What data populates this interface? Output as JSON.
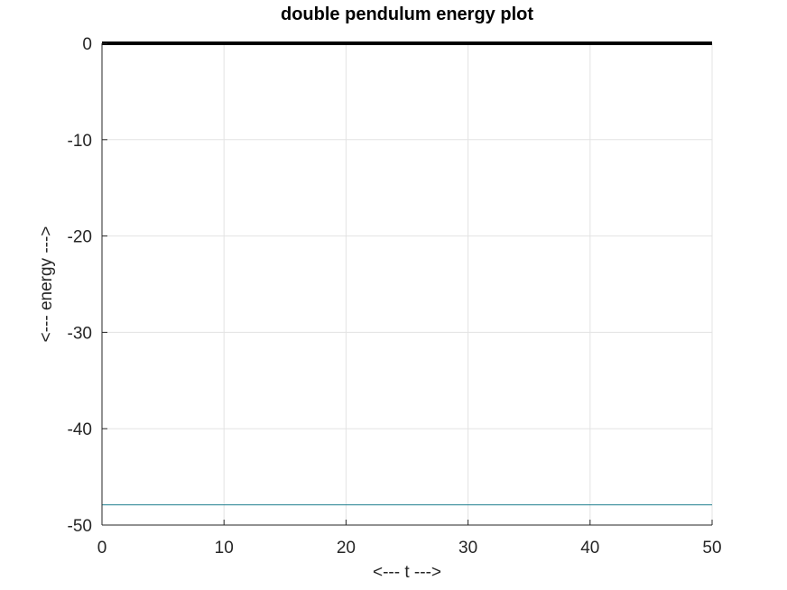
{
  "chart_data": {
    "type": "line",
    "title": "double pendulum energy plot",
    "xlabel": "<--- t --->",
    "ylabel": "<--- energy --->",
    "xlim": [
      0,
      50
    ],
    "ylim": [
      -50,
      0
    ],
    "xticks": [
      0,
      10,
      20,
      30,
      40,
      50
    ],
    "yticks": [
      0,
      -10,
      -20,
      -30,
      -40,
      -50
    ],
    "grid": true,
    "series": [
      {
        "x": [
          0,
          10,
          20,
          30,
          40,
          50
        ],
        "y": [
          0,
          0,
          0,
          0,
          0,
          0
        ],
        "color": "#000000"
      },
      {
        "x": [
          0,
          10,
          20,
          30,
          40,
          50
        ],
        "y": [
          -47.9,
          -47.9,
          -47.9,
          -47.9,
          -47.9,
          -47.9
        ],
        "color": "#1f7f8f"
      }
    ]
  }
}
